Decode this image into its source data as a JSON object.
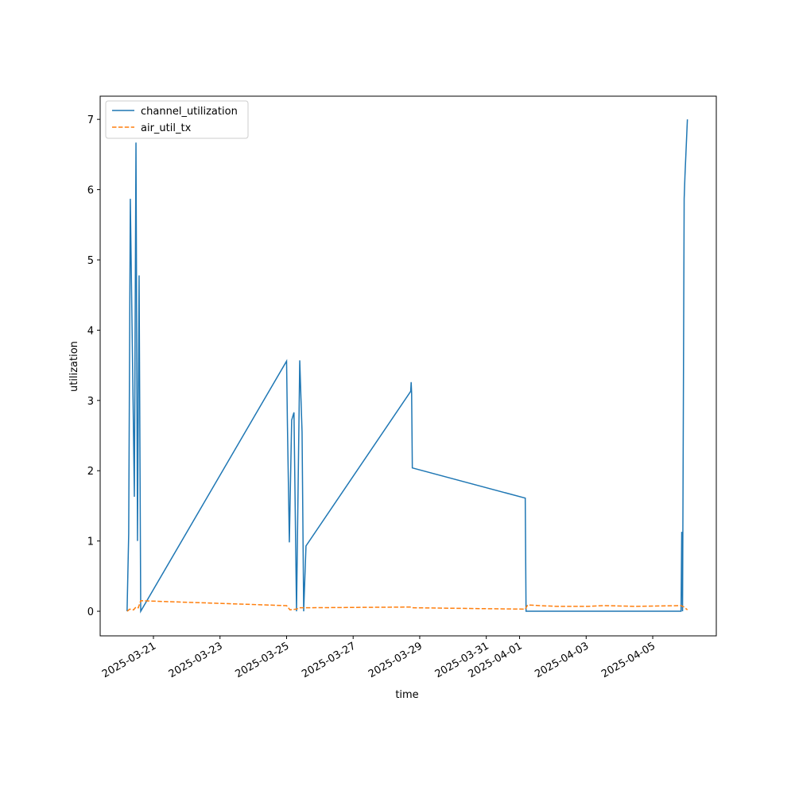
{
  "chart_data": {
    "type": "line",
    "xlabel": "time",
    "ylabel": "utilization",
    "xlim": [
      "2025-03-19T09:36",
      "2025-04-06T21:50"
    ],
    "xticks": [
      "2025-03-21",
      "2025-03-23",
      "2025-03-25",
      "2025-03-27",
      "2025-03-29",
      "2025-03-31",
      "2025-04-01",
      "2025-04-03",
      "2025-04-05"
    ],
    "ylim": [
      -0.35,
      7.33
    ],
    "yticks": [
      0,
      1,
      2,
      3,
      4,
      5,
      6,
      7
    ],
    "legend": "upper left",
    "series": [
      {
        "name": "channel_utilization",
        "color": "#1f77b4",
        "dash": "solid",
        "x": [
          "2025-03-20T05:00",
          "2025-03-20T06:10",
          "2025-03-20T07:20",
          "2025-03-20T10:15",
          "2025-03-20T11:25",
          "2025-03-20T12:30",
          "2025-03-20T13:40",
          "2025-03-20T14:50",
          "2025-03-25T00:00",
          "2025-03-25T00:35",
          "2025-03-25T02:00",
          "2025-03-25T03:40",
          "2025-03-25T05:20",
          "2025-03-25T07:10",
          "2025-03-25T09:30",
          "2025-03-25T11:10",
          "2025-03-25T12:20",
          "2025-03-25T14:00",
          "2025-03-28T17:30",
          "2025-03-28T17:50",
          "2025-03-28T18:10",
          "2025-03-28T18:40",
          "2025-04-01T04:05",
          "2025-04-01T04:40",
          "2025-04-05T20:25",
          "2025-04-05T20:55",
          "2025-04-05T21:30",
          "2025-04-05T22:40",
          "2025-04-05T23:15",
          "2025-04-06T01:00"
        ],
        "values": [
          0,
          1.1,
          5.87,
          1.63,
          6.67,
          1.0,
          4.78,
          0,
          3.56,
          2.7,
          0.98,
          2.72,
          2.83,
          0,
          3.57,
          2.55,
          0,
          0.93,
          3.13,
          3.26,
          3.1,
          2.04,
          1.61,
          0,
          0,
          1.13,
          0,
          5.87,
          6.2,
          7.0
        ]
      },
      {
        "name": "air_util_tx",
        "color": "#ff7f0e",
        "dash": "dashed",
        "x": [
          "2025-03-20T05:05",
          "2025-03-20T06:50",
          "2025-03-20T09:40",
          "2025-03-20T11:25",
          "2025-03-20T13:05",
          "2025-03-20T14:50",
          "2025-03-25T00:00",
          "2025-03-25T02:30",
          "2025-03-25T07:05",
          "2025-03-25T09:25",
          "2025-03-25T14:00",
          "2025-03-28T17:35",
          "2025-03-28T18:40",
          "2025-04-01T04:05",
          "2025-04-01T05:50",
          "2025-04-01T14:55",
          "2025-04-02T02:25",
          "2025-04-03T01:20",
          "2025-04-03T12:45",
          "2025-04-04T11:40",
          "2025-04-05T20:25",
          "2025-04-05T22:35",
          "2025-04-06T01:00"
        ],
        "values": [
          0.0,
          0.03,
          0.02,
          0.06,
          0.05,
          0.15,
          0.08,
          0.02,
          0.03,
          0.05,
          0.05,
          0.06,
          0.05,
          0.03,
          0.09,
          0.08,
          0.07,
          0.07,
          0.08,
          0.07,
          0.08,
          0.06,
          0.02
        ]
      }
    ]
  }
}
